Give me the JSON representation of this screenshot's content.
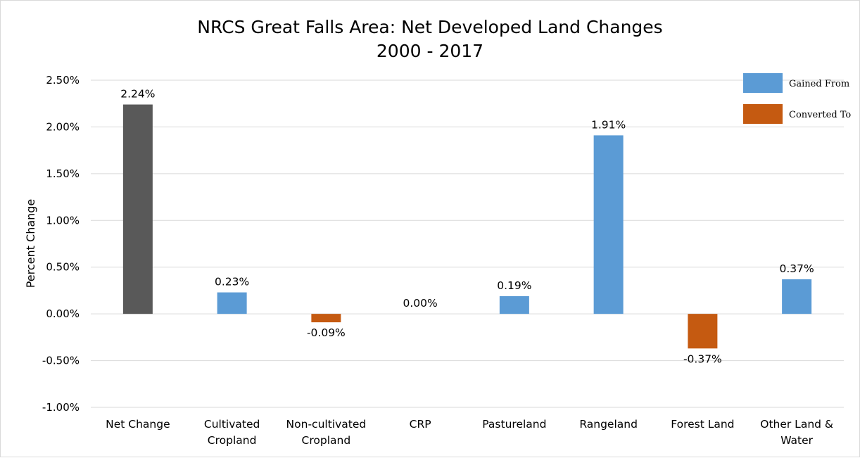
{
  "chart_data": {
    "type": "bar",
    "title": "NRCS Great Falls Area: Net Developed Land Changes",
    "subtitle": "2000 - 2017",
    "ylabel": "Percent Change",
    "xlabel": "",
    "ylim": [
      -1.0,
      2.5
    ],
    "yticks": [
      2.5,
      2.0,
      1.5,
      1.0,
      0.5,
      0.0,
      -0.5,
      -1.0
    ],
    "ytick_labels": [
      "2.50%",
      "2.00%",
      "1.50%",
      "1.00%",
      "0.50%",
      "0.00%",
      "-0.50%",
      "-1.00%"
    ],
    "grid": true,
    "legend_position": "top-right",
    "categories": [
      [
        "Net Change"
      ],
      [
        "Cultivated",
        "Cropland"
      ],
      [
        "Non-cultivated",
        "Cropland"
      ],
      [
        "CRP"
      ],
      [
        "Pastureland"
      ],
      [
        "Rangeland"
      ],
      [
        "Forest Land"
      ],
      [
        "Other Land &",
        "Water"
      ]
    ],
    "values": [
      2.24,
      0.23,
      -0.09,
      0.0,
      0.19,
      1.91,
      -0.37,
      0.37
    ],
    "data_labels": [
      "2.24%",
      "0.23%",
      "-0.09%",
      "0.00%",
      "0.19%",
      "1.91%",
      "-0.37%",
      "0.37%"
    ],
    "bar_series": [
      "net",
      "gained",
      "converted",
      "gained",
      "gained",
      "gained",
      "converted",
      "gained"
    ],
    "series": [
      {
        "key": "gained",
        "name": "Gained From",
        "color": "#5b9bd5"
      },
      {
        "key": "converted",
        "name": "Converted To",
        "color": "#c55a11"
      }
    ],
    "net_color": "#595959",
    "grid_color": "#d9d9d9"
  }
}
